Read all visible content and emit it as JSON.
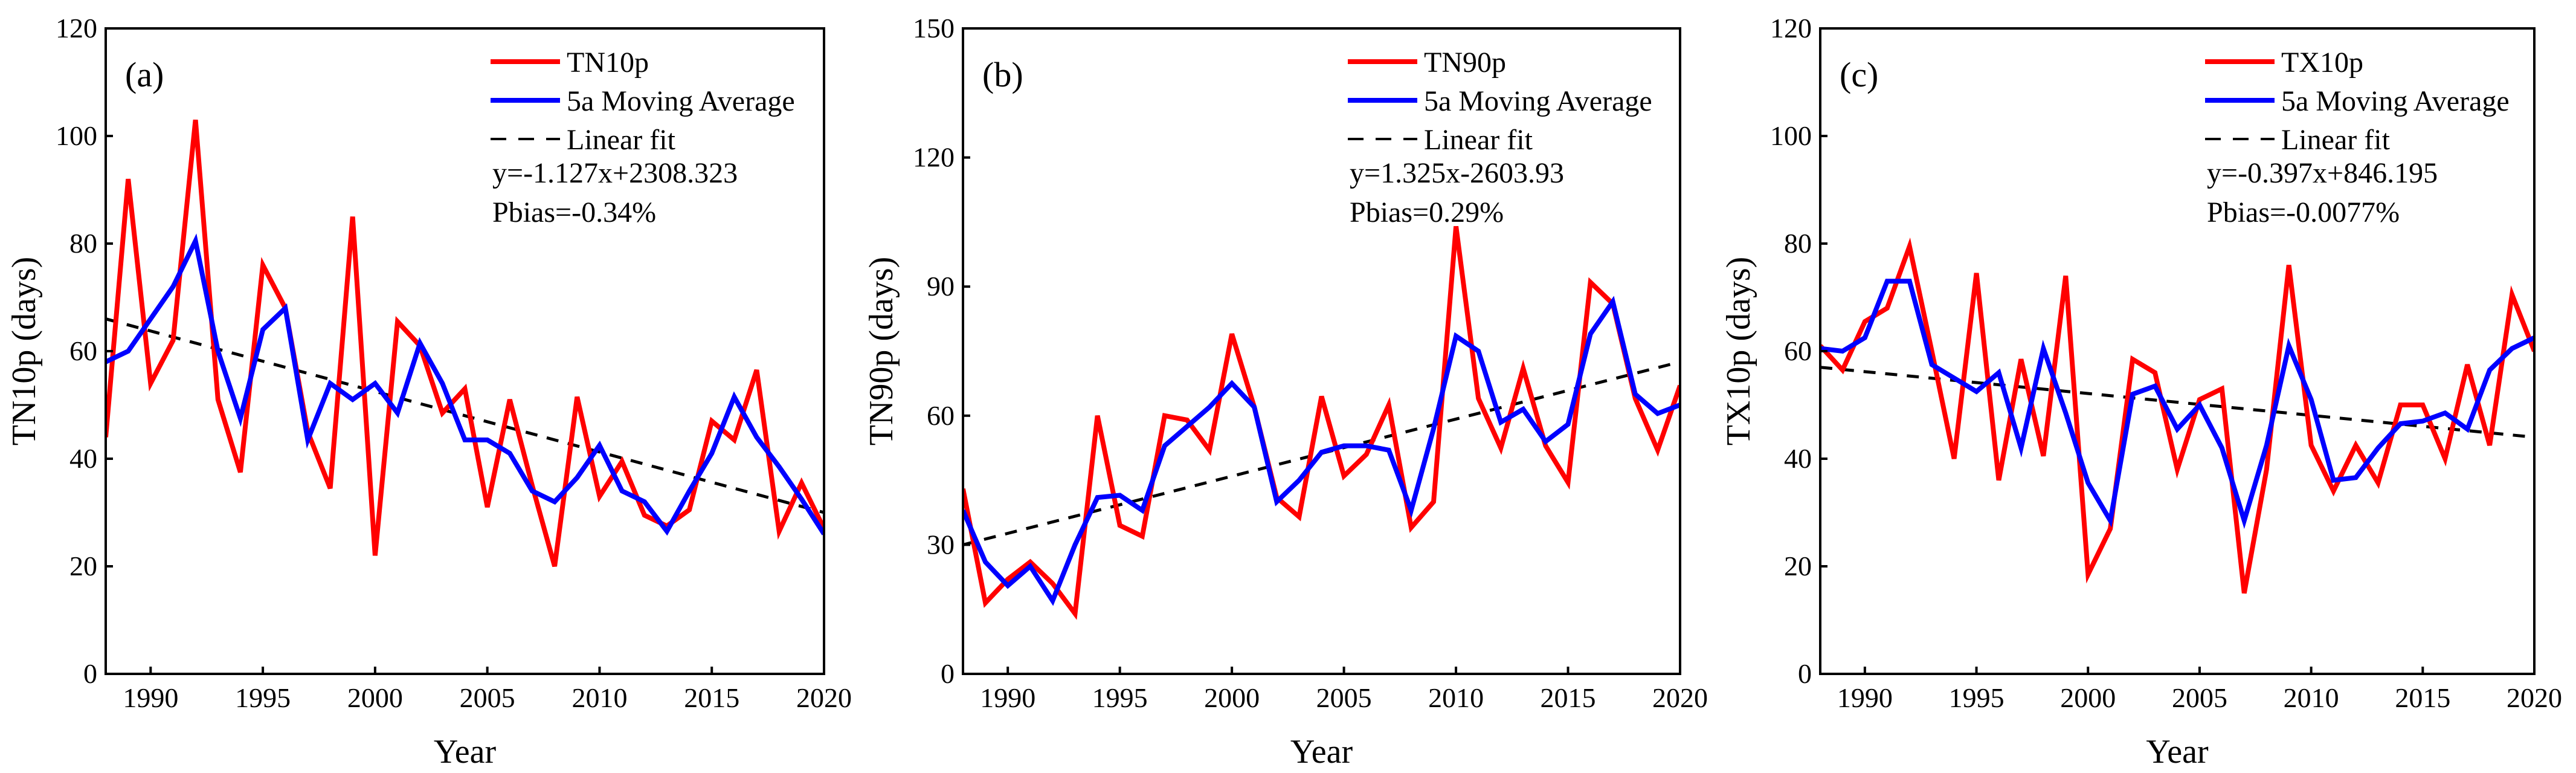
{
  "chart_data": [
    {
      "type": "line",
      "panel_label": "(a)",
      "xlabel": "Year",
      "ylabel": "TN10p (days)",
      "xlim": [
        1988,
        2020
      ],
      "ylim": [
        0,
        120
      ],
      "yticks": [
        0,
        20,
        40,
        60,
        80,
        100,
        120
      ],
      "xticks": [
        1990,
        1995,
        2000,
        2005,
        2010,
        2015,
        2020
      ],
      "legend_position": "top-right",
      "equation": "y=-1.127x+2308.323",
      "pbias": "Pbias=-0.34%",
      "x": [
        1988,
        1989,
        1990,
        1991,
        1992,
        1993,
        1994,
        1995,
        1996,
        1997,
        1998,
        1999,
        2000,
        2001,
        2002,
        2003,
        2004,
        2005,
        2006,
        2007,
        2008,
        2009,
        2010,
        2011,
        2012,
        2013,
        2014,
        2015,
        2016,
        2017,
        2018,
        2019,
        2020
      ],
      "series": [
        {
          "name": "TN10p",
          "color": "#ff0000",
          "style": "solid",
          "values": [
            44,
            92,
            54,
            62,
            103,
            51,
            37.5,
            76,
            68,
            45,
            34.5,
            85,
            22,
            65.5,
            61,
            48.5,
            53,
            31,
            51,
            35,
            20,
            51.5,
            33,
            39.5,
            29.5,
            27.5,
            30.5,
            47,
            43.5,
            56.5,
            26.5,
            35.5,
            27
          ]
        },
        {
          "name": "5a Moving Average",
          "color": "#0000ff",
          "style": "solid",
          "values": [
            58,
            60,
            66,
            72,
            80.5,
            60,
            47.5,
            64,
            68,
            43.5,
            54,
            51,
            54,
            48.5,
            61.5,
            54,
            43.5,
            43.5,
            41,
            34,
            32,
            36.5,
            42.5,
            34,
            32,
            26.5,
            34,
            41,
            51.5,
            44,
            38.5,
            32.5,
            26
          ]
        },
        {
          "name": "Linear fit",
          "color": "#000000",
          "style": "dashed",
          "x": [
            1988,
            2020
          ],
          "values": [
            66,
            30
          ]
        }
      ]
    },
    {
      "type": "line",
      "panel_label": "(b)",
      "xlabel": "Year",
      "ylabel": "TN90p (days)",
      "xlim": [
        1988,
        2020
      ],
      "ylim": [
        0,
        150
      ],
      "yticks": [
        0,
        30,
        60,
        90,
        120,
        150
      ],
      "xticks": [
        1990,
        1995,
        2000,
        2005,
        2010,
        2015,
        2020
      ],
      "legend_position": "top-right",
      "equation": "y=1.325x-2603.93",
      "pbias": "Pbias=0.29%",
      "x": [
        1988,
        1989,
        1990,
        1991,
        1992,
        1993,
        1994,
        1995,
        1996,
        1997,
        1998,
        1999,
        2000,
        2001,
        2002,
        2003,
        2004,
        2005,
        2006,
        2007,
        2008,
        2009,
        2010,
        2011,
        2012,
        2013,
        2014,
        2015,
        2016,
        2017,
        2018,
        2019,
        2020
      ],
      "series": [
        {
          "name": "TN90p",
          "color": "#ff0000",
          "style": "solid",
          "values": [
            43,
            16.5,
            22,
            26,
            21,
            14,
            60,
            34.5,
            32,
            60,
            59,
            52,
            79,
            62,
            41,
            36.5,
            64.5,
            46,
            51,
            62.5,
            34,
            40,
            104,
            64,
            52.5,
            71,
            53,
            44.5,
            91,
            86,
            64,
            52,
            67
          ]
        },
        {
          "name": "5a Moving Average",
          "color": "#0000ff",
          "style": "solid",
          "values": [
            38,
            26,
            20.5,
            25,
            17,
            30,
            41,
            41.5,
            38,
            53,
            57.5,
            62,
            67.5,
            62,
            40,
            45,
            51.5,
            53,
            53,
            52,
            38,
            57,
            78.5,
            75,
            58.5,
            61.5,
            54,
            58,
            79,
            86.5,
            65,
            60.5,
            62.5
          ]
        },
        {
          "name": "Linear fit",
          "color": "#000000",
          "style": "dashed",
          "x": [
            1988,
            2020
          ],
          "values": [
            30,
            72.5
          ]
        }
      ]
    },
    {
      "type": "line",
      "panel_label": "(c)",
      "xlabel": "Year",
      "ylabel": "TX10p (days)",
      "xlim": [
        1988,
        2020
      ],
      "ylim": [
        0,
        120
      ],
      "yticks": [
        0,
        20,
        40,
        60,
        80,
        100,
        120
      ],
      "xticks": [
        1990,
        1995,
        2000,
        2005,
        2010,
        2015,
        2020
      ],
      "legend_position": "top-right",
      "equation": "y=-0.397x+846.195",
      "pbias": "Pbias=-0.0077%",
      "x": [
        1988,
        1989,
        1990,
        1991,
        1992,
        1993,
        1994,
        1995,
        1996,
        1997,
        1998,
        1999,
        2000,
        2001,
        2002,
        2003,
        2004,
        2005,
        2006,
        2007,
        2008,
        2009,
        2010,
        2011,
        2012,
        2013,
        2014,
        2015,
        2016,
        2017,
        2018,
        2019,
        2020
      ],
      "series": [
        {
          "name": "TX10p",
          "color": "#ff0000",
          "style": "solid",
          "values": [
            61,
            56.5,
            65.5,
            68,
            79.5,
            60,
            40,
            74.5,
            36,
            58.5,
            40.5,
            74,
            18.5,
            27,
            58.5,
            56,
            38,
            51,
            53,
            15,
            38,
            76,
            42.5,
            34,
            42.5,
            35.5,
            50,
            50,
            40,
            57.5,
            42.5,
            70.5,
            60
          ]
        },
        {
          "name": "5a Moving Average",
          "color": "#0000ff",
          "style": "solid",
          "values": [
            60.5,
            60,
            62.5,
            73,
            73,
            57.5,
            55,
            52.5,
            56,
            42,
            60.5,
            48.5,
            35.5,
            28.5,
            52,
            53.5,
            45.5,
            50,
            42,
            28.5,
            42.5,
            61,
            51,
            36,
            36.5,
            42,
            46.5,
            47,
            48.5,
            45.5,
            56.5,
            60.5,
            62.5
          ]
        },
        {
          "name": "Linear fit",
          "color": "#000000",
          "style": "dashed",
          "x": [
            1988,
            2020
          ],
          "values": [
            57,
            44
          ]
        }
      ]
    }
  ]
}
